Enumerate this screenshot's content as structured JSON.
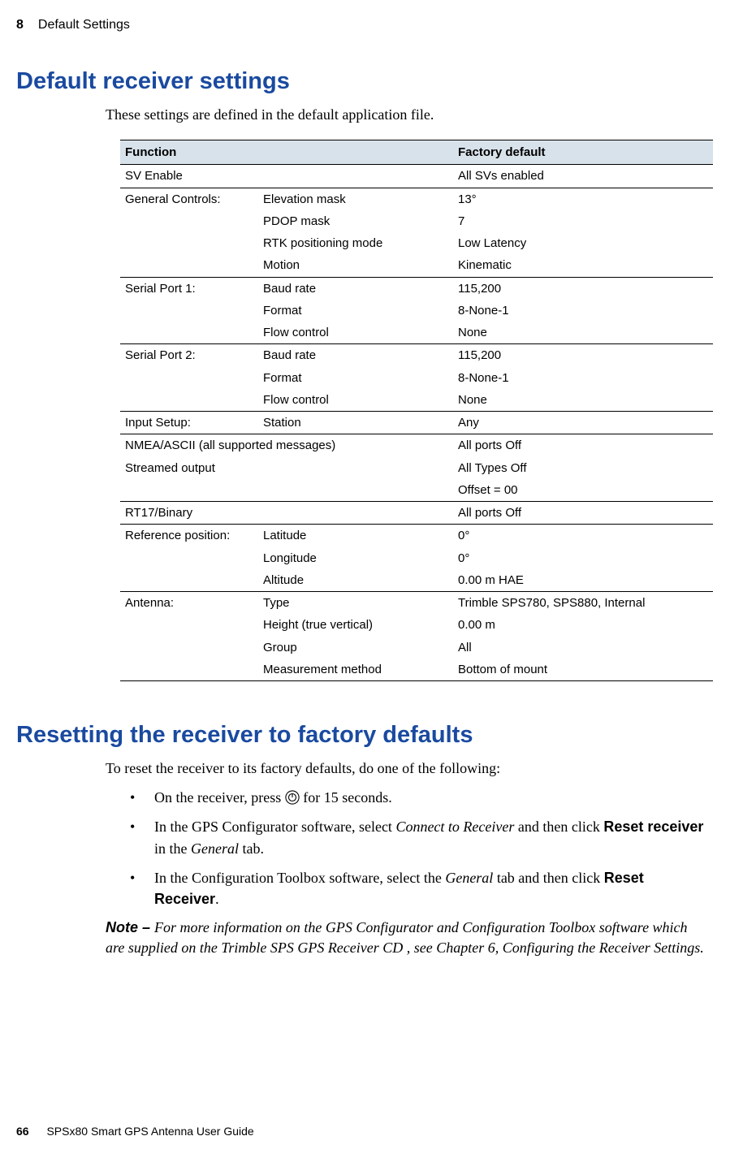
{
  "header": {
    "chapter_number": "8",
    "chapter_title": "Default Settings"
  },
  "section1": {
    "heading": "Default receiver settings",
    "intro": "These settings are defined in the default application file."
  },
  "table": {
    "columns": [
      "Function",
      "Factory default"
    ],
    "header_bg": "#d8e2eb",
    "groups": [
      {
        "rows": [
          {
            "func": "SV Enable",
            "param": "",
            "val": "All SVs enabled"
          }
        ]
      },
      {
        "rows": [
          {
            "func": "General Controls:",
            "param": "Elevation mask",
            "val": "13°"
          },
          {
            "func": "",
            "param": "PDOP mask",
            "val": "7"
          },
          {
            "func": "",
            "param": "RTK positioning mode",
            "val": "Low Latency"
          },
          {
            "func": "",
            "param": "Motion",
            "val": "Kinematic"
          }
        ]
      },
      {
        "rows": [
          {
            "func": "Serial Port 1:",
            "param": "Baud rate",
            "val": "115,200"
          },
          {
            "func": "",
            "param": "Format",
            "val": "8-None-1"
          },
          {
            "func": "",
            "param": "Flow control",
            "val": "None"
          }
        ]
      },
      {
        "rows": [
          {
            "func": "Serial Port 2:",
            "param": "Baud rate",
            "val": "115,200"
          },
          {
            "func": "",
            "param": "Format",
            "val": "8-None-1"
          },
          {
            "func": "",
            "param": "Flow control",
            "val": "None"
          }
        ]
      },
      {
        "rows": [
          {
            "func": "Input Setup:",
            "param": "Station",
            "val": "Any"
          }
        ]
      },
      {
        "rows": [
          {
            "func": "NMEA/ASCII (all supported messages)",
            "param": "",
            "val": "All ports Off"
          },
          {
            "func": "Streamed output",
            "param": "",
            "val": "All Types Off"
          },
          {
            "func": "",
            "param": "",
            "val": "Offset = 00"
          }
        ]
      },
      {
        "rows": [
          {
            "func": "RT17/Binary",
            "param": "",
            "val": "All ports Off"
          }
        ]
      },
      {
        "rows": [
          {
            "func": "Reference position:",
            "param": "Latitude",
            "val": "0°"
          },
          {
            "func": "",
            "param": "Longitude",
            "val": "0°"
          },
          {
            "func": "",
            "param": "Altitude",
            "val": "0.00 m HAE"
          }
        ]
      },
      {
        "rows": [
          {
            "func": "Antenna:",
            "param": "Type",
            "val": "Trimble SPS780, SPS880, Internal"
          },
          {
            "func": "",
            "param": "Height (true vertical)",
            "val": "0.00 m"
          },
          {
            "func": "",
            "param": "Group",
            "val": "All"
          },
          {
            "func": "",
            "param": "Measurement method",
            "val": "Bottom of mount"
          }
        ]
      }
    ]
  },
  "section2": {
    "heading": "Resetting the receiver to factory defaults",
    "intro": "To reset the receiver to its factory defaults, do one of the following:",
    "bullets": {
      "b1_pre": "On the receiver, press ",
      "b1_post": " for 15 seconds.",
      "b2_pre": "In the GPS Configurator software, select ",
      "b2_italic1": "Connect to Receiver",
      "b2_mid": " and then click ",
      "b2_bold": "Reset receiver",
      "b2_mid2": " in the ",
      "b2_italic2": "General",
      "b2_post": " tab.",
      "b3_pre": "In the Configuration Toolbox software, select the ",
      "b3_italic": "General",
      "b3_mid": " tab and then click ",
      "b3_bold": "Reset Receiver",
      "b3_post": "."
    },
    "note_label": "Note – ",
    "note_text": "For more information on the GPS Configurator and Configuration Toolbox software which are supplied on the Trimble SPS GPS Receiver CD , see Chapter 6, Configuring the Receiver Settings."
  },
  "footer": {
    "page_number": "66",
    "guide_name": "SPSx80 Smart GPS Antenna User Guide"
  },
  "colors": {
    "heading_color": "#1a4aa0",
    "table_header_bg": "#d8e2eb",
    "text_color": "#000000",
    "background": "#ffffff"
  }
}
